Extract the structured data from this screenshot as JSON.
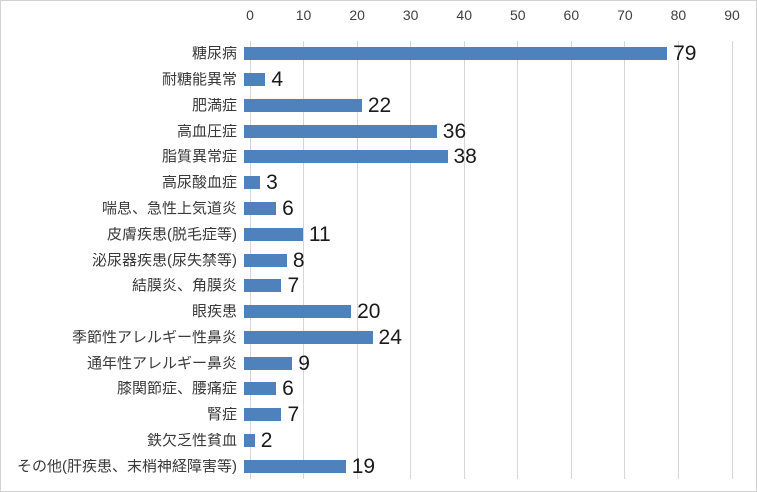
{
  "chart_data": {
    "type": "bar",
    "orientation": "horizontal",
    "title": "",
    "xlabel": "",
    "ylabel": "",
    "categories": [
      "糖尿病",
      "耐糖能異常",
      "肥満症",
      "高血圧症",
      "脂質異常症",
      "高尿酸血症",
      "喘息、急性上気道炎",
      "皮膚疾患(脱毛症等)",
      "泌尿器疾患(尿失禁等)",
      "結膜炎、角膜炎",
      "眼疾患",
      "季節性アレルギー性鼻炎",
      "通年性アレルギー鼻炎",
      "膝関節症、腰痛症",
      "腎症",
      "鉄欠乏性貧血",
      "その他(肝疾患、末梢神経障害等)"
    ],
    "values": [
      79,
      4,
      22,
      36,
      38,
      3,
      6,
      11,
      8,
      7,
      20,
      24,
      9,
      6,
      7,
      2,
      19
    ],
    "xlim": [
      0,
      90
    ],
    "xticks": [
      0,
      10,
      20,
      30,
      40,
      50,
      60,
      70,
      80,
      90
    ],
    "grid": true,
    "legend": false,
    "data_labels": true,
    "axis_position": "top",
    "colors": {
      "bar": "#4F81BD",
      "gridline": "#D6D6D6",
      "tick_label": "#3F3F3F",
      "category_label": "#3A3A3A",
      "value_label": "#1A1A1A",
      "border": "#D2D2D2",
      "background": "#FFFFFF"
    }
  }
}
